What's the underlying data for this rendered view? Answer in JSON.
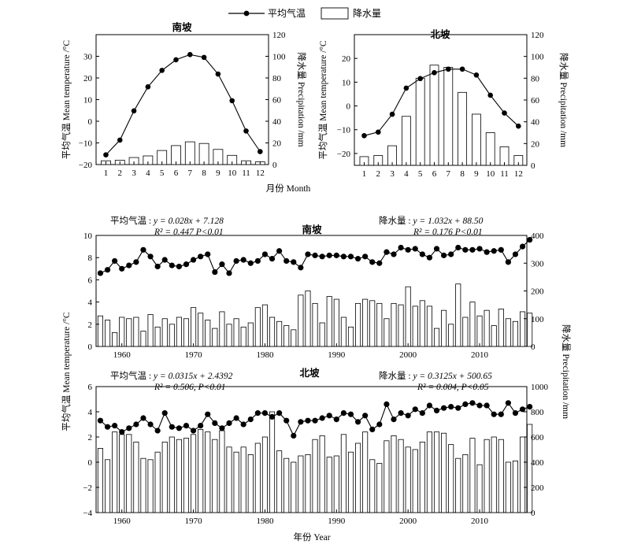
{
  "legend": {
    "temperature": "平均气温",
    "precipitation": "降水量"
  },
  "chart_data": [
    {
      "type": "bar",
      "title": "南坡",
      "xlabel": "月份 Month",
      "ylabel": "平均气温 Mean temperature /°C",
      "ylabel_right": "降水量 Precipitation /mm",
      "categories": [
        "1",
        "2",
        "3",
        "4",
        "5",
        "6",
        "7",
        "8",
        "9",
        "10",
        "11",
        "12"
      ],
      "xlim": [
        0.3,
        12.6
      ],
      "ylim": [
        -20,
        40
      ],
      "y_ticks": [
        "−20",
        "−10",
        "0",
        "10",
        "20",
        "30"
      ],
      "ylim_right": [
        0,
        120
      ],
      "y_ticks_right": [
        "0",
        "20",
        "40",
        "60",
        "80",
        "100",
        "120"
      ],
      "series": [
        {
          "name": "平均气温",
          "axis": "left",
          "kind": "line",
          "values": [
            -15.5,
            -8.7,
            4.8,
            15.9,
            23.5,
            28.4,
            30.8,
            29.5,
            21.8,
            9.5,
            -4.5,
            -14.0
          ]
        },
        {
          "name": "降水量",
          "axis": "right",
          "kind": "bar",
          "values": [
            3.5,
            4,
            6.5,
            8,
            13,
            17.5,
            21,
            19.5,
            14,
            8.5,
            3.5,
            2.5
          ]
        }
      ]
    },
    {
      "type": "bar",
      "title": "北坡",
      "xlabel": "月份 Month",
      "ylabel": "平均气温 Mean temperature /°C",
      "ylabel_right": "降水量 Precipitation /mm",
      "categories": [
        "1",
        "2",
        "3",
        "4",
        "5",
        "6",
        "7",
        "8",
        "9",
        "10",
        "11",
        "12"
      ],
      "xlim": [
        0.3,
        12.6
      ],
      "ylim": [
        -25,
        30
      ],
      "y_ticks": [
        "−20",
        "−10",
        "0",
        "10",
        "20"
      ],
      "ylim_right": [
        0,
        120
      ],
      "y_ticks_right": [
        "0",
        "20",
        "40",
        "60",
        "80",
        "100",
        "120"
      ],
      "series": [
        {
          "name": "平均气温",
          "axis": "left",
          "kind": "line",
          "values": [
            -12.5,
            -11.0,
            -3.5,
            7.5,
            11.5,
            14.0,
            15.5,
            15.5,
            13.0,
            4.5,
            -3.0,
            -8.5
          ]
        },
        {
          "name": "降水量",
          "axis": "right",
          "kind": "bar",
          "values": [
            8,
            9,
            18,
            45,
            80,
            92,
            90,
            67,
            47,
            30,
            17,
            9
          ]
        }
      ]
    },
    {
      "type": "bar",
      "title": "南坡",
      "xlabel": "",
      "ylabel": "平均气温 Mean temperature /°C",
      "ylabel_right": "降水量 Precipitation /mm",
      "x_start": 1957,
      "xlim": [
        1956.4,
        2016.6
      ],
      "x_ticks": [
        "1960",
        "1970",
        "1980",
        "1990",
        "2000",
        "2010"
      ],
      "ylim": [
        0,
        10
      ],
      "y_ticks": [
        "0",
        "2",
        "4",
        "6",
        "8",
        "10"
      ],
      "ylim_right": [
        0,
        400
      ],
      "y_ticks_right": [
        "0",
        "100",
        "200",
        "300",
        "400"
      ],
      "equations": {
        "temperature": {
          "label": "平均气温 : ",
          "formula": "y = 0.028x + 7.128",
          "r2_label": "R² = 0.447",
          "p_label": "P<0.01"
        },
        "precipitation": {
          "label": "降水量 : ",
          "formula": "y = 1.032x + 88.50",
          "r2_label": "R² = 0.176",
          "p_label": "P<0.01"
        }
      },
      "series": [
        {
          "name": "平均气温",
          "axis": "left",
          "kind": "line",
          "values": [
            6.6,
            6.9,
            7.7,
            7.0,
            7.3,
            7.6,
            8.7,
            8.1,
            7.2,
            7.8,
            7.3,
            7.2,
            7.4,
            7.8,
            8.1,
            8.3,
            6.7,
            7.4,
            6.6,
            7.7,
            7.8,
            7.5,
            7.7,
            8.3,
            7.9,
            8.6,
            7.7,
            7.6,
            7.1,
            8.3,
            8.2,
            8.1,
            8.2,
            8.2,
            8.1,
            8.1,
            7.9,
            8.1,
            7.6,
            7.5,
            8.5,
            8.3,
            8.9,
            8.7,
            8.8,
            8.3,
            8.0,
            8.8,
            8.2,
            8.3,
            8.9,
            8.7,
            8.7,
            8.8,
            8.5,
            8.6,
            8.7,
            7.6,
            8.3,
            9.0,
            9.6
          ]
        },
        {
          "name": "降水量",
          "axis": "right",
          "kind": "bar",
          "values": [
            110,
            95,
            50,
            105,
            100,
            105,
            55,
            115,
            70,
            100,
            80,
            105,
            100,
            140,
            120,
            95,
            65,
            125,
            80,
            100,
            70,
            85,
            140,
            150,
            105,
            90,
            75,
            60,
            185,
            200,
            155,
            85,
            180,
            170,
            105,
            70,
            155,
            170,
            165,
            155,
            100,
            155,
            150,
            215,
            145,
            165,
            145,
            65,
            130,
            80,
            225,
            105,
            160,
            110,
            130,
            75,
            135,
            100,
            90,
            125,
            120
          ]
        }
      ]
    },
    {
      "type": "bar",
      "title": "北坡",
      "xlabel": "年份 Year",
      "ylabel": "平均气温 Mean temperature /°C",
      "ylabel_right": "降水量 Precipitation /mm",
      "x_start": 1957,
      "xlim": [
        1956.4,
        2016.6
      ],
      "x_ticks": [
        "1960",
        "1970",
        "1980",
        "1990",
        "2000",
        "2010"
      ],
      "ylim": [
        -4,
        6
      ],
      "y_ticks": [
        "−4",
        "−2",
        "0",
        "2",
        "4",
        "6"
      ],
      "ylim_right": [
        0,
        1000
      ],
      "y_ticks_right": [
        "0",
        "200",
        "400",
        "600",
        "800",
        "1000"
      ],
      "equations": {
        "temperature": {
          "label": "平均气温 : ",
          "formula": "y = 0.0315x + 2.4392",
          "r2_label": "R² = 0.506",
          "p_label": "P<0.01"
        },
        "precipitation": {
          "label": "降水量 : ",
          "formula": "y = 0.3125x + 500.65",
          "r2_label": "R² = 0.004",
          "p_label": "P<0.05"
        }
      },
      "series": [
        {
          "name": "平均气温",
          "axis": "left",
          "kind": "line",
          "values": [
            3.3,
            2.8,
            2.9,
            2.4,
            2.7,
            3.0,
            3.5,
            3.0,
            2.5,
            3.9,
            2.8,
            2.7,
            2.9,
            2.5,
            2.9,
            3.8,
            3.1,
            2.7,
            3.1,
            3.5,
            3.0,
            3.4,
            3.9,
            3.9,
            3.6,
            3.9,
            3.3,
            2.1,
            3.2,
            3.3,
            3.3,
            3.5,
            3.7,
            3.4,
            3.9,
            3.8,
            3.2,
            3.7,
            2.6,
            3.0,
            4.6,
            3.4,
            3.9,
            3.7,
            4.2,
            3.9,
            4.5,
            4.1,
            4.3,
            4.4,
            4.3,
            4.6,
            4.7,
            4.5,
            4.5,
            3.8,
            3.8,
            4.7,
            3.9,
            4.2,
            4.4
          ]
        },
        {
          "name": "降水量",
          "axis": "right",
          "kind": "bar",
          "values": [
            510,
            420,
            640,
            620,
            620,
            560,
            430,
            420,
            480,
            560,
            600,
            580,
            590,
            620,
            660,
            640,
            580,
            650,
            520,
            480,
            520,
            460,
            550,
            600,
            800,
            490,
            430,
            400,
            450,
            460,
            580,
            610,
            440,
            450,
            620,
            480,
            550,
            640,
            420,
            390,
            570,
            610,
            580,
            520,
            500,
            560,
            640,
            640,
            630,
            540,
            430,
            460,
            590,
            380,
            580,
            600,
            580,
            400,
            410,
            600,
            700
          ]
        }
      ]
    }
  ]
}
